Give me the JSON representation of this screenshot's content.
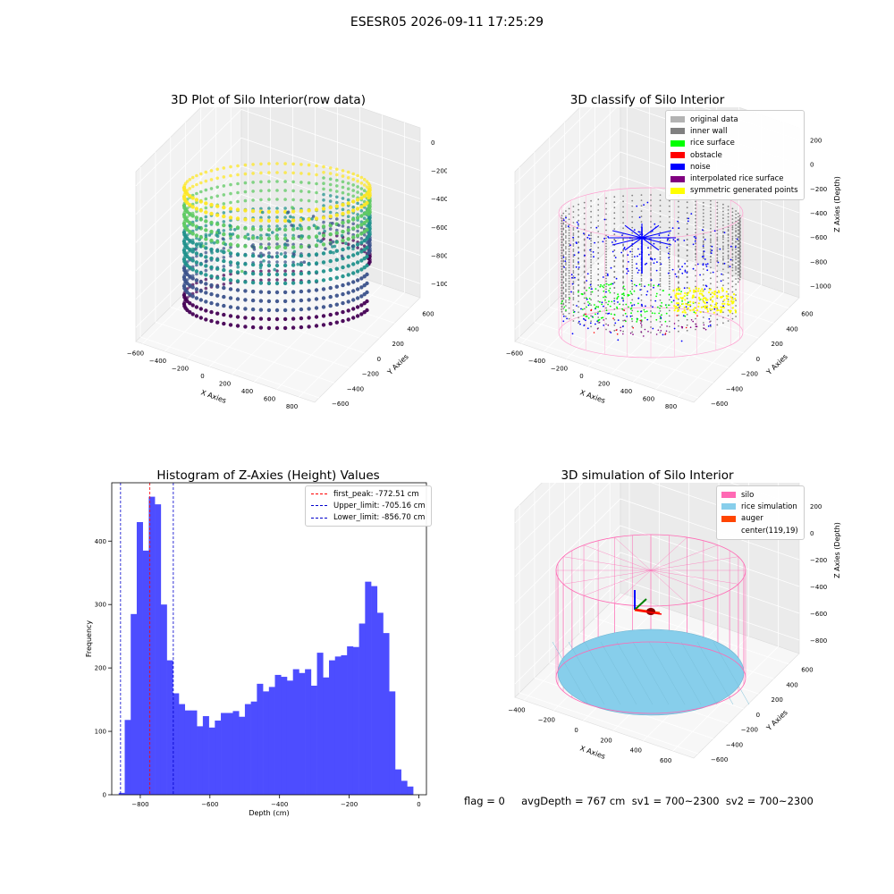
{
  "suptitle": "ESESR05 2026-09-11 17:25:29",
  "panels": {
    "raw": {
      "title": "3D Plot of Silo Interior(row data)"
    },
    "classify": {
      "title": "3D classify of Silo Interior"
    },
    "hist": {
      "title": "Histogram of Z-Axies (Height) Values"
    },
    "sim": {
      "title": "3D simulation of Silo Interior"
    }
  },
  "status": {
    "text": "flag = 0     avgDepth = 767 cm  sv1 = 700~2300  sv2 = 700~2300"
  },
  "chart_data": [
    {
      "type": "scatter",
      "title": "3D Plot of Silo Interior(row data)",
      "xlabel": "X Axies",
      "ylabel": "Y Axies",
      "zlabel": "Z Axies (Depth)",
      "xticks": [
        "−600",
        "−400",
        "−200",
        "0",
        "200",
        "400",
        "600",
        "800"
      ],
      "yticks": [
        "−600",
        "−400",
        "−200",
        "0",
        "200",
        "400",
        "600"
      ],
      "zticks": [
        "0",
        "−200",
        "−400",
        "−600",
        "−800",
        "−1000"
      ],
      "colormap": [
        "#fde725",
        "#5ec962",
        "#21918c",
        "#3b528b",
        "#440154"
      ]
    },
    {
      "type": "scatter",
      "title": "3D classify of Silo Interior",
      "xlabel": "X Axies",
      "ylabel": "Y Axies",
      "zlabel": "Z Axies (Depth)",
      "xticks": [
        "−600",
        "−400",
        "−200",
        "0",
        "200",
        "400",
        "600",
        "800"
      ],
      "yticks": [
        "−600",
        "−400",
        "−200",
        "0",
        "200",
        "400",
        "600"
      ],
      "zticks": [
        "200",
        "0",
        "−200",
        "−400",
        "−600",
        "−800",
        "−1000"
      ],
      "legend": [
        {
          "label": "original data",
          "color": "#b3b3b3"
        },
        {
          "label": "inner wall",
          "color": "#808080"
        },
        {
          "label": "rice surface",
          "color": "#00ff00"
        },
        {
          "label": "obstacle",
          "color": "#ff0000"
        },
        {
          "label": "noise",
          "color": "#0000ff"
        },
        {
          "label": "interpolated rice surface",
          "color": "#800080"
        },
        {
          "label": "symmetric generated points",
          "color": "#ffff00"
        }
      ]
    },
    {
      "type": "bar",
      "title": "Histogram of Z-Axies (Height) Values",
      "xlabel": "Depth (cm)",
      "ylabel": "Frequency",
      "xlim": [
        -882,
        22
      ],
      "ylim": [
        0,
        492
      ],
      "xticks": [
        "−800",
        "−600",
        "−400",
        "−200",
        "0"
      ],
      "yticks": [
        "0",
        "100",
        "200",
        "300",
        "400"
      ],
      "bar_color": "#4d4dff",
      "bin_start": -862,
      "bin_width": 17.26,
      "values": [
        3,
        118,
        285,
        430,
        385,
        470,
        458,
        300,
        212,
        160,
        143,
        133,
        133,
        108,
        124,
        106,
        117,
        129,
        129,
        132,
        123,
        143,
        147,
        175,
        163,
        170,
        189,
        186,
        180,
        198,
        192,
        198,
        172,
        224,
        185,
        212,
        218,
        220,
        234,
        233,
        270,
        336,
        329,
        287,
        255,
        163,
        40,
        22,
        13
      ],
      "lines": [
        {
          "label": "first_peak: -772.51 cm",
          "x": -772.51,
          "color": "#ff0000"
        },
        {
          "label": "Upper_limit: -705.16 cm",
          "x": -705.16,
          "color": "#0000cc"
        },
        {
          "label": "Lower_limit: -856.70 cm",
          "x": -856.7,
          "color": "#0000cc"
        }
      ]
    },
    {
      "type": "surface",
      "title": "3D simulation of Silo Interior",
      "xlabel": "X Axies",
      "ylabel": "Y Axies",
      "zlabel": "Z Axies (Depth)",
      "xticks": [
        "−400",
        "−200",
        "0",
        "200",
        "400",
        "600"
      ],
      "yticks": [
        "−600",
        "−400",
        "−200",
        "0",
        "200",
        "400",
        "600"
      ],
      "zticks": [
        "400",
        "200",
        "0",
        "−200",
        "−400",
        "−600",
        "−800"
      ],
      "legend": [
        {
          "label": "silo",
          "color": "#ff69b4"
        },
        {
          "label": "rice simulation",
          "color": "#87ceeb"
        },
        {
          "label": "auger",
          "color": "#ff4500"
        },
        {
          "label": "center(119,19)",
          "color": ""
        }
      ]
    }
  ]
}
